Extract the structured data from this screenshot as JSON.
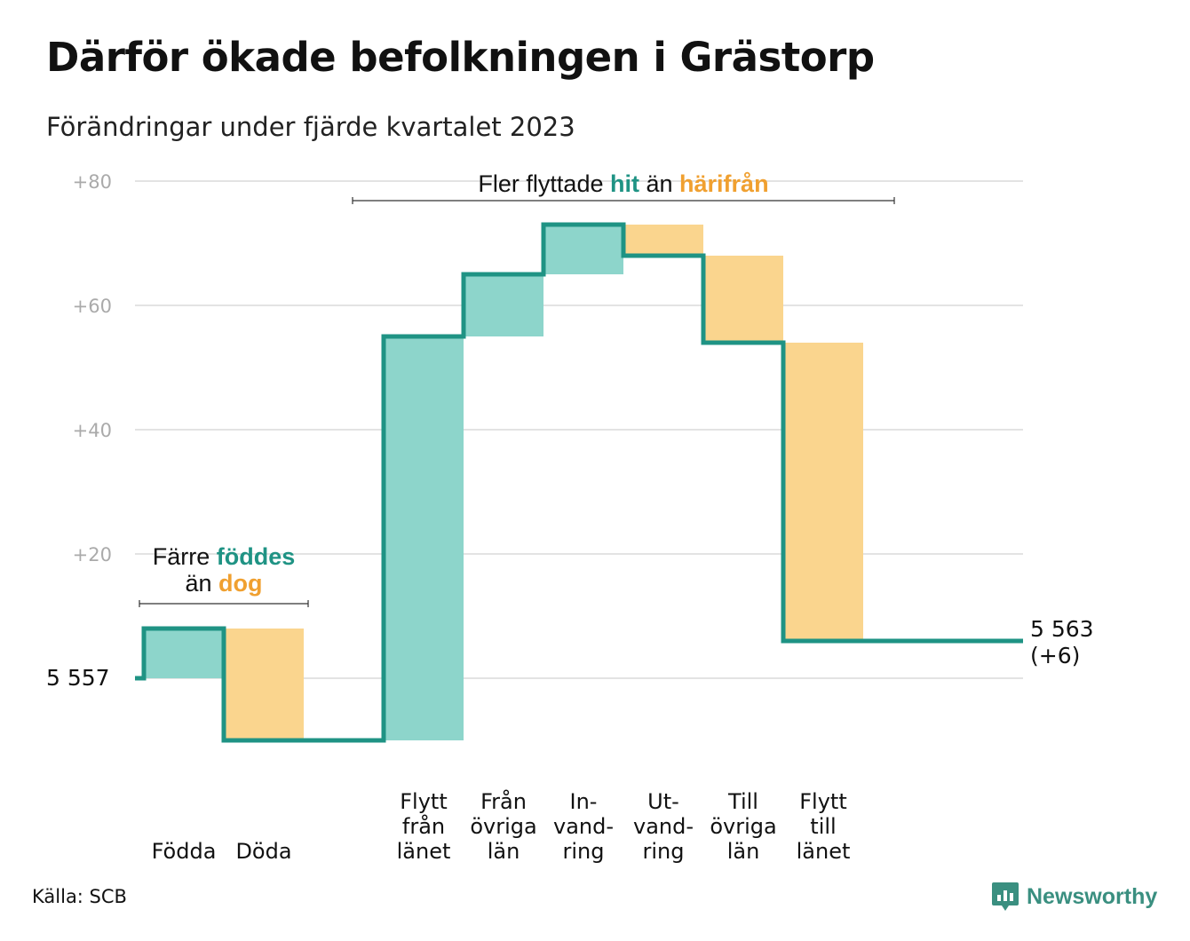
{
  "title": "Därför ökade befolkningen i Grästorp",
  "subtitle": "Förändringar under fjärde kvartalet 2023",
  "source": "Källa: SCB",
  "brand": "Newsworthy",
  "colors": {
    "increase": "#8dd5cb",
    "decrease": "#fad58e",
    "line": "#1f9384",
    "grid": "#e3e3e3",
    "tick": "#aaaaaa",
    "teal_text": "#1f9384",
    "orange_text": "#f0a030"
  },
  "chart_data": {
    "type": "waterfall",
    "start": {
      "value": 5557,
      "label": "5  557"
    },
    "end": {
      "value": 5563,
      "label": "5 563",
      "change": "(+6)"
    },
    "y_ticks": [
      {
        "value": 20,
        "label": "+20"
      },
      {
        "value": 40,
        "label": "+40"
      },
      {
        "value": 60,
        "label": "+60"
      },
      {
        "value": 80,
        "label": "+80"
      }
    ],
    "ylim": [
      -10,
      80
    ],
    "steps": [
      {
        "label": [
          "Födda"
        ],
        "change": 8,
        "kind": "increase"
      },
      {
        "label": [
          "Döda"
        ],
        "change": -18,
        "kind": "decrease"
      },
      {
        "label": [],
        "change": 0,
        "kind": "none"
      },
      {
        "label": [
          "Flytt",
          "från",
          "länet"
        ],
        "change": 65,
        "kind": "increase"
      },
      {
        "label": [
          "Från",
          "övriga",
          "län"
        ],
        "change": 10,
        "kind": "increase"
      },
      {
        "label": [
          "In-",
          "vand-",
          "ring"
        ],
        "change": 8,
        "kind": "increase"
      },
      {
        "label": [
          "Ut-",
          "vand-",
          "ring"
        ],
        "change": -5,
        "kind": "decrease"
      },
      {
        "label": [
          "Till",
          "övriga",
          "län"
        ],
        "change": -14,
        "kind": "decrease"
      },
      {
        "label": [
          "Flytt",
          "till",
          "länet"
        ],
        "change": -48,
        "kind": "decrease"
      }
    ],
    "annotations": [
      {
        "lines": [
          [
            {
              "text": "Färre ",
              "style": "plain"
            },
            {
              "text": "föddes",
              "style": "teal"
            }
          ],
          [
            {
              "text": "än ",
              "style": "plain"
            },
            {
              "text": "dog",
              "style": "orange"
            }
          ]
        ],
        "from_step": 0,
        "to_step": 1
      },
      {
        "lines": [
          [
            {
              "text": "Fler flyttade ",
              "style": "plain"
            },
            {
              "text": "hit",
              "style": "teal"
            },
            {
              "text": " än ",
              "style": "plain"
            },
            {
              "text": "härifrån",
              "style": "orange"
            }
          ]
        ],
        "from_step": 3,
        "to_step": 8
      }
    ]
  }
}
